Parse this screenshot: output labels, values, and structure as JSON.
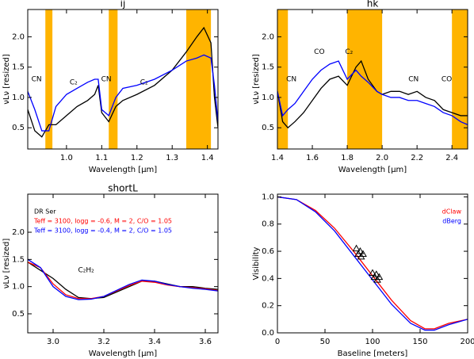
{
  "chart_data": [
    {
      "type": "line",
      "title": "ij",
      "xlabel": "Wavelength [μm]",
      "ylabel": "νLν [resized]",
      "xlim": [
        0.89,
        1.43
      ],
      "xticks": [
        {
          "value": 1,
          "label": "1.0"
        },
        1.1,
        1.2,
        1.3,
        1.4
      ],
      "ylim": [
        0.15,
        2.45
      ],
      "yticks": [
        0.5,
        {
          "value": 1,
          "label": "1.0"
        },
        1.5,
        {
          "value": 2,
          "label": "2.0"
        }
      ],
      "shaded_regions": [
        [
          0.94,
          0.96
        ],
        [
          1.12,
          1.145
        ],
        [
          1.34,
          1.41
        ]
      ],
      "shade_color": "#ffb400",
      "x": [
        0.89,
        0.91,
        0.93,
        0.95,
        0.97,
        1.0,
        1.03,
        1.06,
        1.08,
        1.09,
        1.1,
        1.12,
        1.14,
        1.16,
        1.2,
        1.25,
        1.3,
        1.34,
        1.37,
        1.39,
        1.41,
        1.42,
        1.43
      ],
      "series": [
        {
          "color": "#000000",
          "values": [
            0.8,
            0.45,
            0.35,
            0.55,
            0.55,
            0.7,
            0.85,
            0.95,
            1.05,
            1.2,
            0.75,
            0.6,
            0.85,
            0.95,
            1.05,
            1.2,
            1.45,
            1.75,
            2.0,
            2.15,
            1.9,
            1.0,
            0.5
          ]
        },
        {
          "color": "#0000ff",
          "values": [
            1.1,
            0.8,
            0.45,
            0.45,
            0.85,
            1.05,
            1.15,
            1.25,
            1.3,
            1.3,
            0.8,
            0.7,
            1.0,
            1.15,
            1.2,
            1.3,
            1.45,
            1.6,
            1.65,
            1.7,
            1.65,
            1.2,
            0.6
          ]
        }
      ],
      "annotations": [
        {
          "text": "CN",
          "x": 0.915,
          "y": 1.3
        },
        {
          "text": "C₂",
          "x": 1.02,
          "y": 1.25
        },
        {
          "text": "CN",
          "x": 1.113,
          "y": 1.3
        },
        {
          "text": "C₂",
          "x": 1.22,
          "y": 1.25
        }
      ]
    },
    {
      "type": "line",
      "title": "hk",
      "xlabel": "Wavelength [μm]",
      "ylabel": "νLν [resized]",
      "xlim": [
        1.4,
        2.49
      ],
      "xticks": [
        1.4,
        1.6,
        1.8,
        {
          "value": 2,
          "label": "2.0"
        },
        2.2,
        2.4
      ],
      "ylim": [
        0.15,
        2.45
      ],
      "yticks": [
        0.5,
        {
          "value": 1,
          "label": "1.0"
        },
        1.5,
        {
          "value": 2,
          "label": "2.0"
        }
      ],
      "shaded_regions": [
        [
          1.4,
          1.46
        ],
        [
          1.8,
          2.0
        ],
        [
          2.4,
          2.49
        ]
      ],
      "shade_color": "#ffb400",
      "x": [
        1.4,
        1.43,
        1.46,
        1.5,
        1.55,
        1.6,
        1.65,
        1.7,
        1.75,
        1.8,
        1.85,
        1.88,
        1.92,
        1.97,
        2.0,
        2.05,
        2.1,
        2.15,
        2.2,
        2.25,
        2.3,
        2.35,
        2.4,
        2.45,
        2.49
      ],
      "series": [
        {
          "color": "#000000",
          "values": [
            1.1,
            0.6,
            0.5,
            0.6,
            0.75,
            0.95,
            1.15,
            1.3,
            1.35,
            1.2,
            1.5,
            1.6,
            1.3,
            1.1,
            1.05,
            1.1,
            1.1,
            1.05,
            1.1,
            1.0,
            0.95,
            0.8,
            0.75,
            0.7,
            0.7
          ]
        },
        {
          "color": "#0000ff",
          "values": [
            1.1,
            0.7,
            0.8,
            0.9,
            1.1,
            1.3,
            1.45,
            1.55,
            1.6,
            1.3,
            1.45,
            1.35,
            1.25,
            1.1,
            1.05,
            1.0,
            1.0,
            0.95,
            0.95,
            0.9,
            0.85,
            0.75,
            0.7,
            0.6,
            0.55
          ]
        }
      ],
      "annotations": [
        {
          "text": "CN",
          "x": 1.48,
          "y": 1.3
        },
        {
          "text": "CO",
          "x": 1.64,
          "y": 1.75
        },
        {
          "text": "C₂",
          "x": 1.81,
          "y": 1.75
        },
        {
          "text": "CN",
          "x": 2.18,
          "y": 1.3
        },
        {
          "text": "CO",
          "x": 2.37,
          "y": 1.3
        }
      ]
    },
    {
      "type": "line",
      "title": "shortL",
      "xlabel": "Wavelength [μm]",
      "ylabel": "νLν [resized]",
      "xlim": [
        2.9,
        3.65
      ],
      "xticks": [
        {
          "value": 3,
          "label": "3.0"
        },
        3.2,
        3.4,
        3.6
      ],
      "ylim": [
        0.15,
        2.7
      ],
      "yticks": [
        0.5,
        {
          "value": 1,
          "label": "1.0"
        },
        1.5,
        {
          "value": 2,
          "label": "2.0"
        }
      ],
      "legend": "upper left",
      "x": [
        2.9,
        2.95,
        3.0,
        3.05,
        3.1,
        3.15,
        3.2,
        3.25,
        3.3,
        3.35,
        3.4,
        3.45,
        3.5,
        3.55,
        3.6,
        3.65
      ],
      "series": [
        {
          "name": "DR Ser",
          "color": "#000000",
          "values": [
            1.45,
            1.3,
            1.15,
            0.95,
            0.8,
            0.78,
            0.8,
            0.9,
            1.0,
            1.1,
            1.1,
            1.05,
            1.0,
            1.0,
            0.97,
            0.95
          ]
        },
        {
          "name": "Teff = 3100, logg = -0.6, M = 2, C/O = 1.05",
          "color": "#ff0000",
          "values": [
            1.45,
            1.35,
            1.05,
            0.85,
            0.78,
            0.78,
            0.82,
            0.92,
            1.02,
            1.1,
            1.08,
            1.03,
            1.0,
            0.98,
            0.96,
            0.93
          ]
        },
        {
          "name": "Teff = 3100, logg = -0.4, M = 2, C/O = 1.05",
          "color": "#0000ff",
          "values": [
            1.5,
            1.35,
            1.0,
            0.82,
            0.76,
            0.77,
            0.82,
            0.93,
            1.04,
            1.12,
            1.1,
            1.04,
            1.0,
            0.97,
            0.95,
            0.92
          ]
        }
      ],
      "annotations": [
        {
          "text": "C₂H₂",
          "x": 3.13,
          "y": 1.3
        }
      ]
    },
    {
      "type": "line",
      "xlabel": "Baseline [meters]",
      "ylabel": "Visibility",
      "xlim": [
        0,
        200
      ],
      "xticks": [
        0,
        50,
        100,
        150,
        200
      ],
      "ylim": [
        0,
        1.02
      ],
      "yticks": [
        {
          "value": 0,
          "label": "0.0"
        },
        0.2,
        0.4,
        0.6,
        0.8,
        {
          "value": 1,
          "label": "1.0"
        }
      ],
      "legend": "upper right",
      "x": [
        0,
        20,
        40,
        60,
        80,
        100,
        120,
        140,
        155,
        165,
        180,
        200
      ],
      "series": [
        {
          "name": "dClaw",
          "color": "#ff0000",
          "values": [
            1.0,
            0.98,
            0.9,
            0.77,
            0.6,
            0.42,
            0.24,
            0.09,
            0.03,
            0.03,
            0.07,
            0.1
          ]
        },
        {
          "name": "dBerg",
          "color": "#0000ff",
          "values": [
            1.0,
            0.98,
            0.89,
            0.75,
            0.57,
            0.39,
            0.21,
            0.07,
            0.02,
            0.02,
            0.06,
            0.1
          ]
        },
        {
          "type": "scatter",
          "color": "#000000",
          "x": [
            83,
            85,
            87,
            88,
            90,
            100,
            102,
            104,
            105,
            107
          ],
          "values": [
            0.62,
            0.58,
            0.6,
            0.56,
            0.58,
            0.44,
            0.41,
            0.43,
            0.39,
            0.41
          ]
        }
      ]
    }
  ]
}
